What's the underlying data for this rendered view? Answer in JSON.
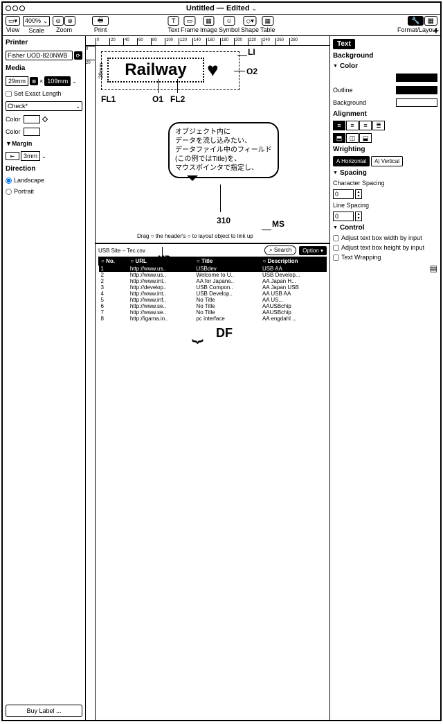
{
  "window": {
    "title": "Untitled — Edited",
    "chevron": "⌄"
  },
  "toolbar": {
    "view_label": "View",
    "scale_value": "400%",
    "scale_label": "Scale",
    "zoom_label": "Zoom",
    "print_label": "Print",
    "center": {
      "text": "Text",
      "frame": "Frame",
      "image": "Image",
      "symbol": "Symbol",
      "shape": "Shape",
      "table": "Table"
    },
    "format_label": "Format/Layout",
    "format_icon": "⚙",
    "layout_icon": "▦"
  },
  "left": {
    "printer_label": "Printer",
    "printer_value": "Fisher UOD-820NWB",
    "media_label": "Media",
    "media_h": "29mm",
    "media_x": "×",
    "media_w": "109mm",
    "set_exact": "Set Exact Length",
    "check": "Check*",
    "color_label": "Color",
    "margin_label": "Margin",
    "margin_value": "3mm",
    "direction_label": "Direction",
    "landscape": "Landscape",
    "portrait": "Portrait",
    "buy": "Buy Label ..."
  },
  "canvas": {
    "label_height": "29mm",
    "text_content": "Railway",
    "heart": "♥",
    "annotations": {
      "LI": "LI",
      "O2": "O2",
      "O1": "O1",
      "FL1": "FL1",
      "FL2": "FL2",
      "310": "310",
      "MS": "MS",
      "MP": "MP",
      "DF": "DF"
    },
    "bubble_text": "オブジェクト内に\nデータを流し込みたい、\nデータファイル中のフィールド\n(この例ではTitle)を、\nマウスポインタで指定し、",
    "drag_hint": "Drag ○ the header's ○ to layout object to link up",
    "ruler_ticks": [
      "0",
      "20",
      "40",
      "60",
      "80",
      "100",
      "120",
      "140",
      "160",
      "180",
      "200",
      "220",
      "240",
      "260",
      "280"
    ]
  },
  "data_panel": {
    "file": "USB Site – Tec.csv",
    "search_placeholder": "Search",
    "option": "Option",
    "cols": [
      "No.",
      "URL",
      "Title",
      "Description"
    ],
    "rows": [
      [
        "1",
        "http://www.us..",
        "USBdev",
        "USB AA"
      ],
      [
        "2",
        "http://www.us..",
        "Welcome to U..",
        "USB Develop..."
      ],
      [
        "2",
        "http://www.int..",
        "AA for Japane..",
        "AA Japan H..."
      ],
      [
        "3",
        "http://develop..",
        "USB Compon..",
        "AA Japan USB"
      ],
      [
        "4",
        "http://www.int..",
        "USB Develop..",
        "AA USB AA"
      ],
      [
        "5",
        "http://www.inf..",
        "No Title",
        "AA US..."
      ],
      [
        "6",
        "http://www.se..",
        "No Title",
        "AAUSBchip"
      ],
      [
        "7",
        "http://www.se..",
        "No Title",
        "AAUSBchip"
      ],
      [
        "8",
        "http://igama.in..",
        "pc interface",
        "AA engdahl ..."
      ]
    ],
    "selected_row": 0
  },
  "right": {
    "plus": "+",
    "tab": "Text",
    "background": "Background",
    "color": "Color",
    "outline": "Outline",
    "bg2": "Background",
    "alignment": "Alignment",
    "wrighting": "Wrighting",
    "horizontal": "Horizontal",
    "vertical": "Vertical",
    "spacing": "Spacing",
    "char_spacing": "Character Spacing",
    "line_spacing": "Line Spacing",
    "spacing_value": "0",
    "control": "Control",
    "adj_w": "Adjust text box width by input",
    "adj_h": "Adjust text box height by input",
    "wrap": "Text Wrapping",
    "colors": {
      "black": "#000000",
      "white": "#ffffff"
    }
  }
}
